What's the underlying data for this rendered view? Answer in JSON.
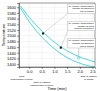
{
  "chart_data": {
    "type": "line",
    "xlabel": "Time (min)",
    "ylabel": "Temperature",
    "xlim": [
      -0.4,
      2.6
    ],
    "ylim": [
      1390,
      1615
    ],
    "xticks": [
      {
        "value": 0,
        "label": "0.0"
      },
      0.5,
      {
        "value": 1,
        "label": "1.0"
      },
      1.5,
      {
        "value": 2,
        "label": "2.0"
      },
      2.5
    ],
    "yticks": [
      1400,
      1420,
      1440,
      1460,
      1480,
      1500,
      1520,
      1540,
      1560,
      1580,
      1600
    ],
    "grid": true,
    "series": [
      {
        "type": "line",
        "color": "#00CCCC",
        "x": [
          -0.35,
          0.0,
          0.3,
          0.6,
          0.9,
          1.2,
          1.5,
          1.8,
          2.1,
          2.4,
          2.6
        ],
        "values": [
          1605,
          1565,
          1535,
          1508,
          1484,
          1464,
          1447,
          1433,
          1422,
          1413,
          1408
        ]
      },
      {
        "type": "line",
        "color": "#00CCCC",
        "x": [
          -0.35,
          0.0,
          0.3,
          0.6,
          0.9,
          1.2,
          1.5,
          1.8,
          2.1,
          2.4,
          2.6
        ],
        "values": [
          1598,
          1550,
          1515,
          1486,
          1461,
          1440,
          1423,
          1410,
          1400,
          1393,
          1390
        ]
      },
      {
        "type": "scatter",
        "marker": "square",
        "color": "#000000",
        "x": [
          0.55
        ],
        "values": [
          1508
        ]
      },
      {
        "type": "scatter",
        "marker": "square",
        "color": "#000000",
        "x": [
          1.25
        ],
        "values": [
          1458
        ]
      },
      {
        "type": "scatter",
        "marker": "circle-open",
        "color": "#00CCCC",
        "x": [
          1.95
        ],
        "values": [
          1422
        ]
      }
    ],
    "annotations": [
      {
        "text": "T.t. pocket. Temperature\nchange measured in\ntop of pocket",
        "x": 0.55,
        "y": 1508
      },
      {
        "text": "T.t. pocket. Temperature\nchange at mold\n(optical pyrometer)",
        "x": 1.25,
        "y": 1458
      },
      {
        "text": "T.t. pocket. Temperature\nchange measured in\nend of pocket",
        "x": 1.95,
        "y": 1422
      }
    ],
    "axis_annotations": [
      {
        "text": "Cast\nmanipulator in mold",
        "x": -0.3
      },
      {
        "text": "Start of casting\n(manipulator in mold)",
        "x": 0.5
      },
      {
        "text": "End of casting\nin molds",
        "x": 2.35
      }
    ]
  }
}
